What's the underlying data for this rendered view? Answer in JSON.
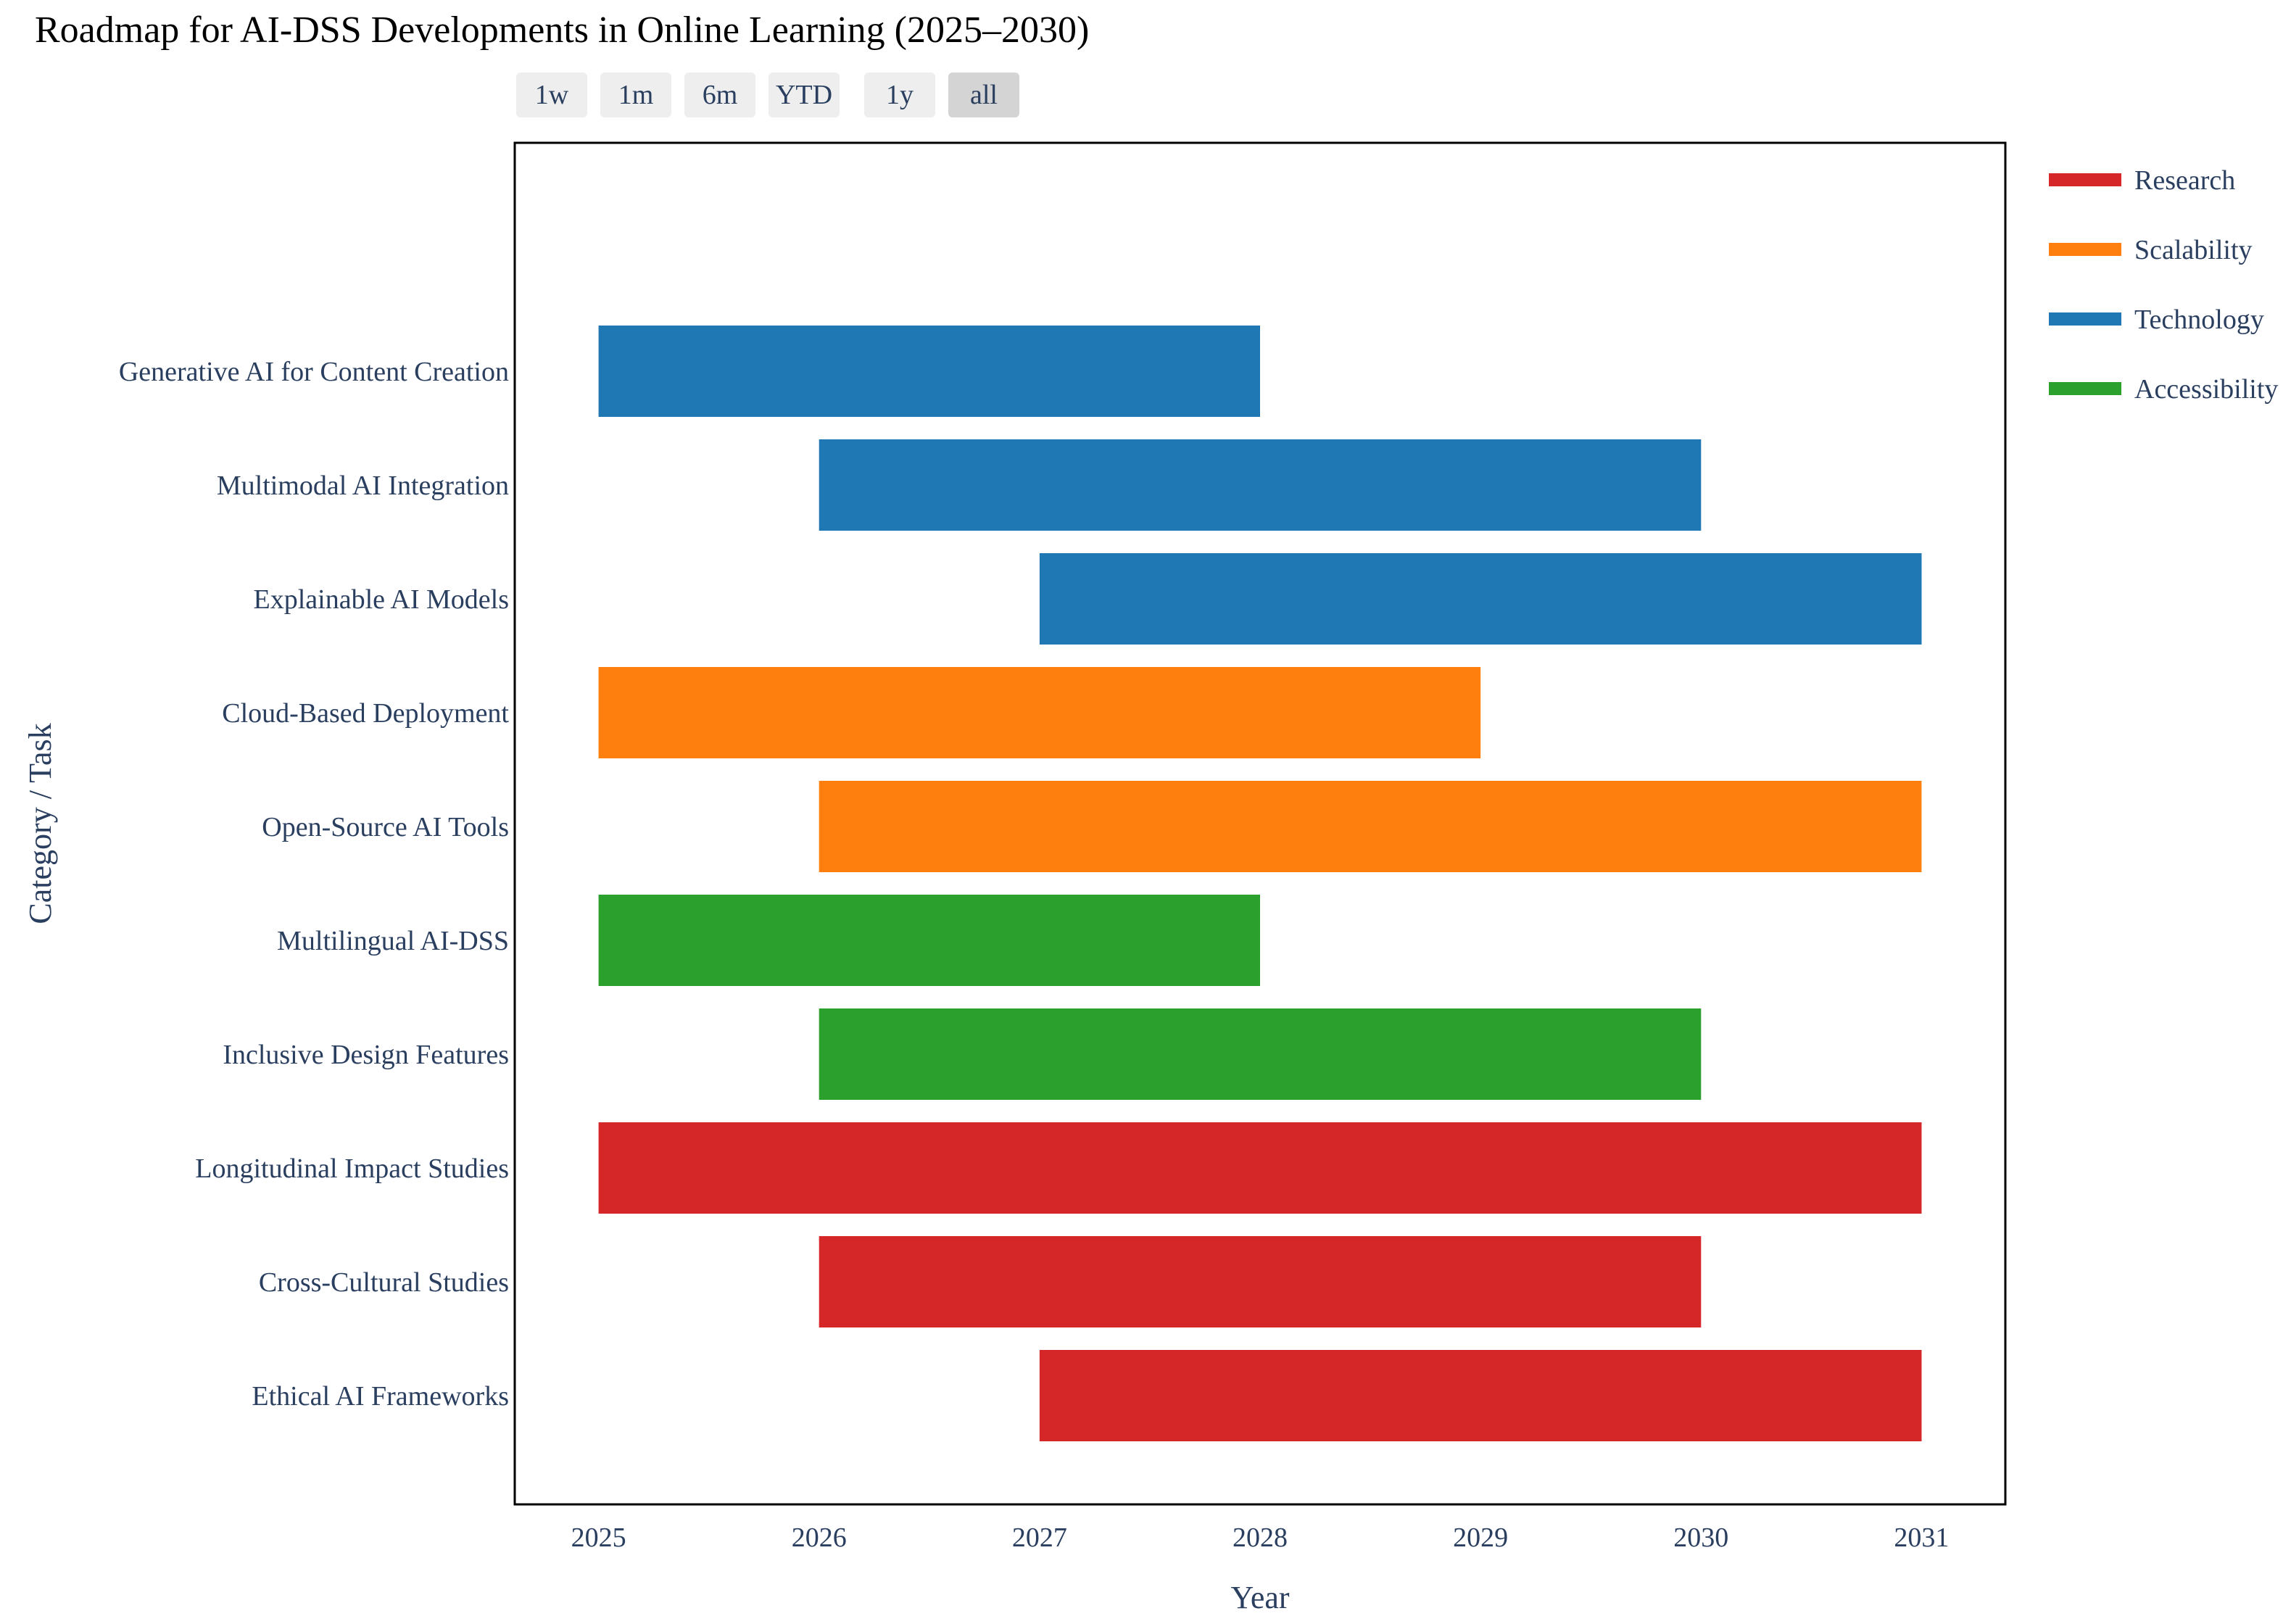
{
  "title": "Roadmap for AI-DSS Developments in Online Learning (2025–2030)",
  "range_selector": {
    "buttons": [
      "1w",
      "1m",
      "6m",
      "YTD",
      "1y",
      "all"
    ],
    "active": "all"
  },
  "chart_data": {
    "type": "gantt",
    "title": "Roadmap for AI-DSS Developments in Online Learning (2025–2030)",
    "xlabel": "Year",
    "ylabel": "Category / Task",
    "xlim": [
      2024.62,
      2031.38
    ],
    "xticks": [
      "2025",
      "2026",
      "2027",
      "2028",
      "2029",
      "2030",
      "2031"
    ],
    "legend_position": "top-right, outside plot",
    "categories": [
      {
        "name": "Research",
        "color": "#d62728"
      },
      {
        "name": "Scalability",
        "color": "#ff7f0e"
      },
      {
        "name": "Technology",
        "color": "#1f77b4"
      },
      {
        "name": "Accessibility",
        "color": "#2ca02c"
      }
    ],
    "tasks": [
      {
        "task": "Generative AI for Content Creation",
        "category": "Technology",
        "start": 2025,
        "end": 2028
      },
      {
        "task": "Multimodal AI Integration",
        "category": "Technology",
        "start": 2026,
        "end": 2030
      },
      {
        "task": "Explainable AI Models",
        "category": "Technology",
        "start": 2027,
        "end": 2031
      },
      {
        "task": "Cloud-Based Deployment",
        "category": "Scalability",
        "start": 2025,
        "end": 2029
      },
      {
        "task": "Open-Source AI Tools",
        "category": "Scalability",
        "start": 2026,
        "end": 2031
      },
      {
        "task": "Multilingual AI-DSS",
        "category": "Accessibility",
        "start": 2025,
        "end": 2028
      },
      {
        "task": "Inclusive Design Features",
        "category": "Accessibility",
        "start": 2026,
        "end": 2030
      },
      {
        "task": "Longitudinal Impact Studies",
        "category": "Research",
        "start": 2025,
        "end": 2031
      },
      {
        "task": "Cross-Cultural Studies",
        "category": "Research",
        "start": 2026,
        "end": 2030
      },
      {
        "task": "Ethical AI Frameworks",
        "category": "Research",
        "start": 2027,
        "end": 2031
      }
    ]
  }
}
